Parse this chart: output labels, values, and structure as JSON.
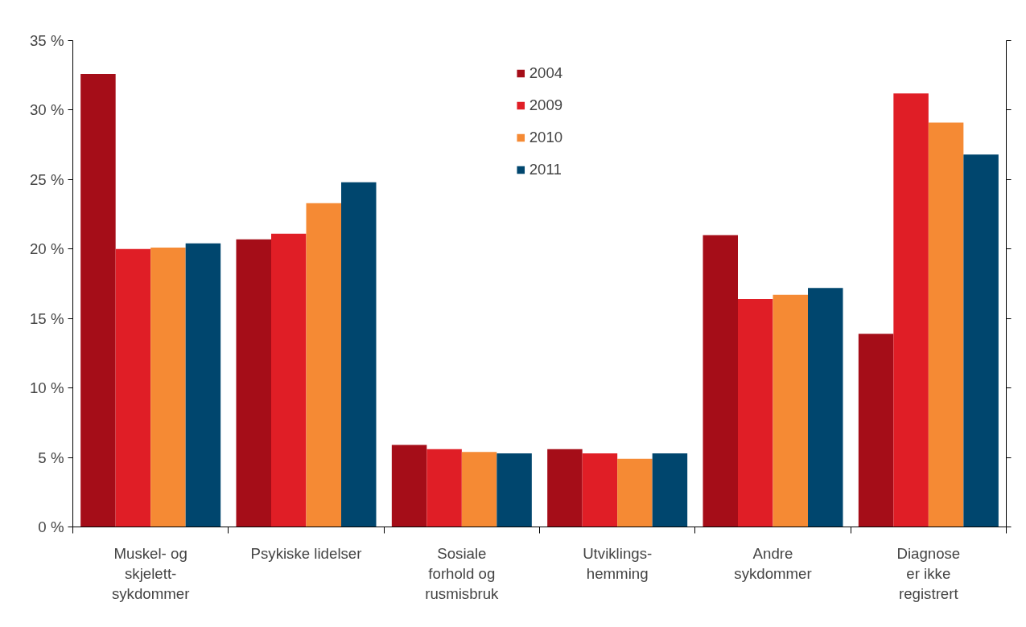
{
  "chart_data": {
    "type": "bar",
    "categories": [
      "Muskel- og\nskjelett-\nsykdommer",
      "Psykiske lidelser",
      "Sosiale\nforhold og\nrusmisbruk",
      "Utviklings-\nhemming",
      "Andre\nsykdommer",
      "Diagnose\ner ikke\nregistrert"
    ],
    "series": [
      {
        "name": "2004",
        "color": "#a50d18",
        "values": [
          32.6,
          20.7,
          5.9,
          5.6,
          21.0,
          13.9
        ]
      },
      {
        "name": "2009",
        "color": "#e01e26",
        "values": [
          20.0,
          21.1,
          5.6,
          5.3,
          16.4,
          31.2
        ]
      },
      {
        "name": "2010",
        "color": "#f58a34",
        "values": [
          20.1,
          23.3,
          5.4,
          4.9,
          16.7,
          29.1
        ]
      },
      {
        "name": "2011",
        "color": "#00466e",
        "values": [
          20.4,
          24.8,
          5.3,
          5.3,
          17.2,
          26.8
        ]
      }
    ],
    "ylim": [
      0,
      35
    ],
    "yticks": [
      {
        "value": 0,
        "label": "0 %"
      },
      {
        "value": 5,
        "label": "5 %"
      },
      {
        "value": 10,
        "label": "10 %"
      },
      {
        "value": 15,
        "label": "15 %"
      },
      {
        "value": 20,
        "label": "20 %"
      },
      {
        "value": 25,
        "label": "25 %"
      },
      {
        "value": 30,
        "label": "30 %"
      },
      {
        "value": 35,
        "label": "35 %"
      }
    ],
    "grid": false,
    "legend": "top"
  }
}
